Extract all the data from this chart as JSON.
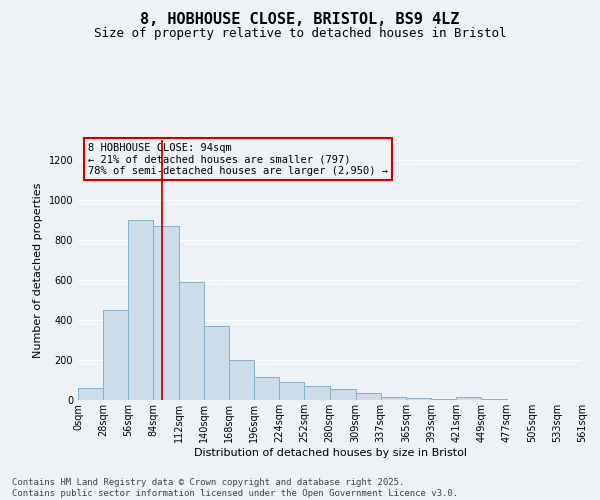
{
  "title": "8, HOBHOUSE CLOSE, BRISTOL, BS9 4LZ",
  "subtitle": "Size of property relative to detached houses in Bristol",
  "xlabel": "Distribution of detached houses by size in Bristol",
  "ylabel": "Number of detached properties",
  "bar_color": "#ccdce8",
  "bar_edge_color": "#88aec8",
  "vline_color": "#cc0000",
  "annotation_box_color": "#cc0000",
  "annotation_text": "8 HOBHOUSE CLOSE: 94sqm\n← 21% of detached houses are smaller (797)\n78% of semi-detached houses are larger (2,950) →",
  "property_size": 94,
  "bin_edges": [
    0,
    28,
    56,
    84,
    112,
    140,
    168,
    196,
    224,
    252,
    280,
    309,
    337,
    365,
    393,
    421,
    449,
    477,
    505,
    533,
    561
  ],
  "bin_labels": [
    "0sqm",
    "28sqm",
    "56sqm",
    "84sqm",
    "112sqm",
    "140sqm",
    "168sqm",
    "196sqm",
    "224sqm",
    "252sqm",
    "280sqm",
    "309sqm",
    "337sqm",
    "365sqm",
    "393sqm",
    "421sqm",
    "449sqm",
    "477sqm",
    "505sqm",
    "533sqm",
    "561sqm"
  ],
  "counts": [
    60,
    450,
    900,
    870,
    590,
    370,
    200,
    115,
    90,
    70,
    55,
    35,
    15,
    10,
    3,
    15,
    3,
    0,
    0,
    0
  ],
  "ylim": [
    0,
    1300
  ],
  "yticks": [
    0,
    200,
    400,
    600,
    800,
    1000,
    1200
  ],
  "footer": "Contains HM Land Registry data © Crown copyright and database right 2025.\nContains public sector information licensed under the Open Government Licence v3.0.",
  "background_color": "#eef2f6",
  "grid_color": "#ffffff",
  "title_fontsize": 11,
  "subtitle_fontsize": 9,
  "label_fontsize": 8,
  "tick_fontsize": 7,
  "annot_fontsize": 7.5,
  "footer_fontsize": 6.5
}
